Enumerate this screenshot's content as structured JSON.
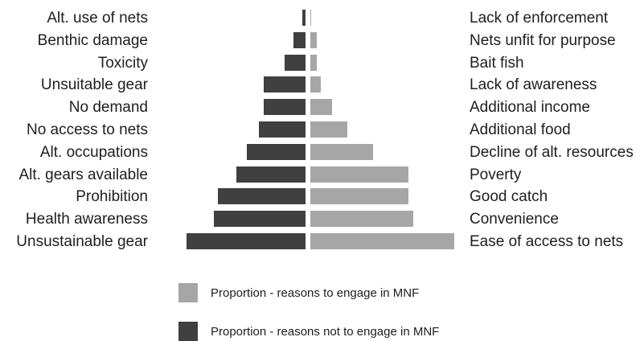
{
  "colors": {
    "engage": "#a6a6a6",
    "not_engage": "#404040",
    "text": "#202020",
    "background": "#ffffff"
  },
  "chart_data": {
    "type": "bar",
    "orientation": "horizontal",
    "layout": "back-to-back",
    "series": [
      {
        "name": "Proportion - reasons not to engage in MNF",
        "side": "left",
        "color": "#404040",
        "categories": [
          "Alt. use of nets",
          "Benthic damage",
          "Toxicity",
          "Unsuitable gear",
          "No demand",
          "No access to nets",
          "Alt. occupations",
          "Alt. gears available",
          "Prohibition",
          "Health awareness",
          "Unsustainable gear"
        ],
        "values": [
          0.005,
          0.02,
          0.035,
          0.07,
          0.07,
          0.078,
          0.098,
          0.115,
          0.145,
          0.152,
          0.198
        ]
      },
      {
        "name": "Proportion - reasons to engage in MNF",
        "side": "right",
        "color": "#a6a6a6",
        "categories": [
          "Lack of enforcement",
          "Nets unfit for purpose",
          "Bait fish",
          "Lack of awareness",
          "Additional income",
          "Additional food",
          "Decline of alt. resources",
          "Poverty",
          "Good catch",
          "Convenience",
          "Ease of access to nets"
        ],
        "values": [
          0.001,
          0.01,
          0.01,
          0.017,
          0.036,
          0.061,
          0.104,
          0.163,
          0.163,
          0.171,
          0.238
        ]
      }
    ],
    "legend": {
      "position": "bottom",
      "entries": [
        {
          "label": "Proportion - reasons to engage in MNF",
          "color": "#a6a6a6"
        },
        {
          "label": "Proportion - reasons not to engage in MNF",
          "color": "#404040"
        }
      ]
    },
    "grid": false,
    "title": "",
    "xlabel": "",
    "ylabel": ""
  }
}
